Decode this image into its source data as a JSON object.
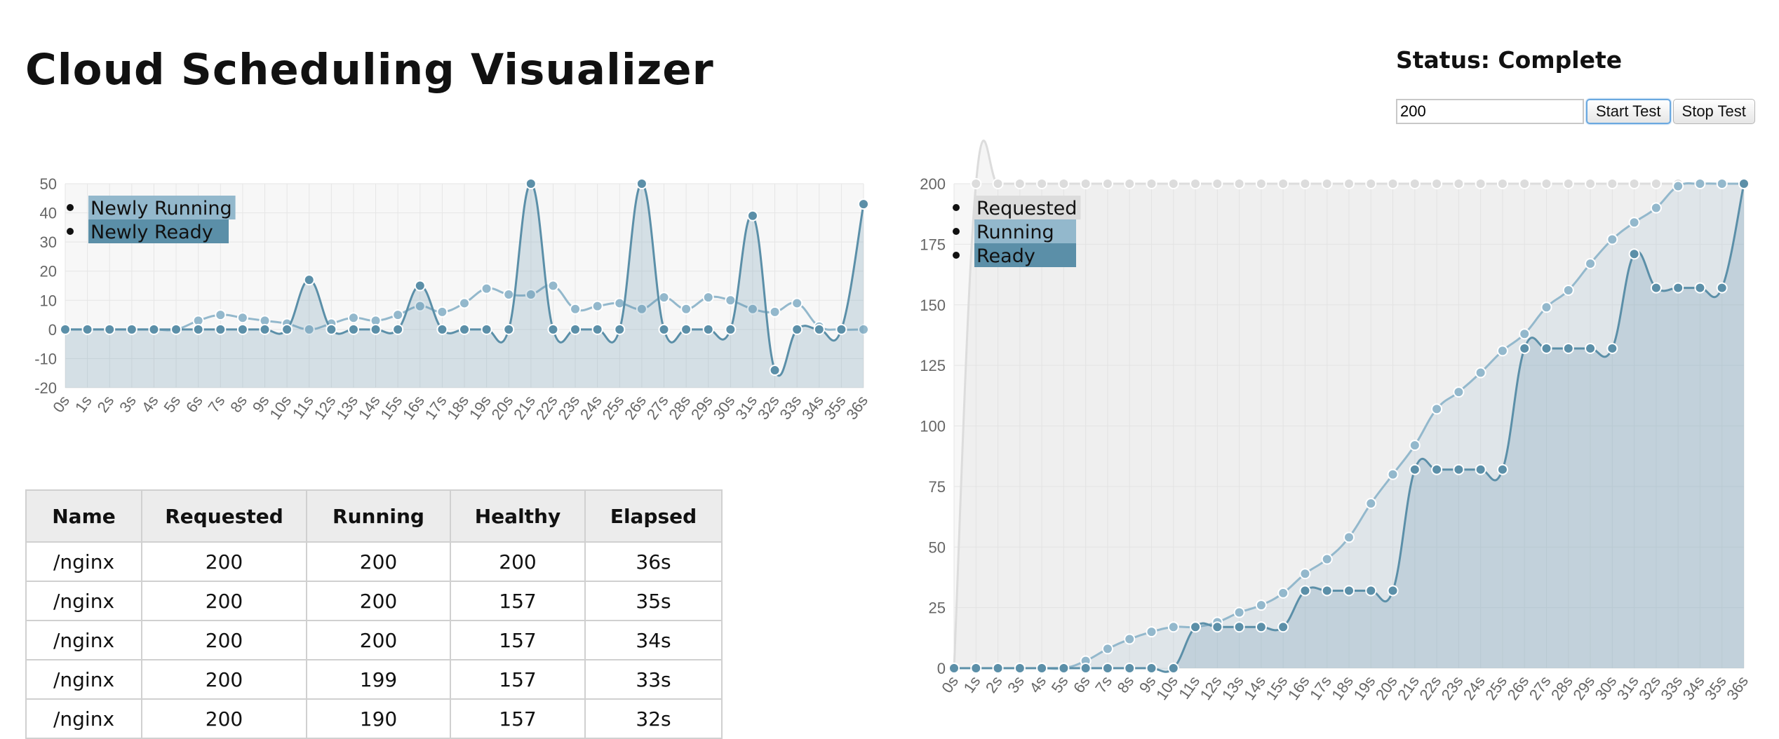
{
  "header": {
    "title": "Cloud Scheduling Visualizer",
    "status": "Status: Complete"
  },
  "controls": {
    "count_value": "200",
    "start_label": "Start Test",
    "stop_label": "Stop Test"
  },
  "colors": {
    "requested": "#dcdcdc",
    "running": "#93b8cc",
    "ready": "#5b8fa8"
  },
  "chart_data": [
    {
      "type": "line",
      "name": "delta-chart",
      "categories": [
        "0s",
        "1s",
        "2s",
        "3s",
        "4s",
        "5s",
        "6s",
        "7s",
        "8s",
        "9s",
        "10s",
        "11s",
        "12s",
        "13s",
        "14s",
        "15s",
        "16s",
        "17s",
        "18s",
        "19s",
        "20s",
        "21s",
        "22s",
        "23s",
        "24s",
        "25s",
        "26s",
        "27s",
        "28s",
        "29s",
        "30s",
        "31s",
        "32s",
        "33s",
        "34s",
        "35s",
        "36s"
      ],
      "ylim": [
        -20,
        50
      ],
      "yticks": [
        -20,
        -10,
        0,
        10,
        20,
        30,
        40,
        50
      ],
      "grid": true,
      "legend_position": "top-left",
      "series": [
        {
          "name": "Newly Running",
          "values": [
            0,
            0,
            0,
            0,
            0,
            0,
            3,
            5,
            4,
            3,
            2,
            0,
            2,
            4,
            3,
            5,
            8,
            6,
            9,
            14,
            12,
            12,
            15,
            7,
            8,
            9,
            7,
            11,
            7,
            11,
            10,
            7,
            6,
            9,
            1,
            0,
            0
          ]
        },
        {
          "name": "Newly Ready",
          "values": [
            0,
            0,
            0,
            0,
            0,
            0,
            0,
            0,
            0,
            0,
            0,
            17,
            0,
            0,
            0,
            0,
            15,
            0,
            0,
            0,
            0,
            50,
            0,
            0,
            0,
            0,
            50,
            0,
            0,
            0,
            0,
            39,
            -14,
            0,
            0,
            0,
            43
          ]
        }
      ]
    },
    {
      "type": "area",
      "name": "cumulative-chart",
      "categories": [
        "0s",
        "1s",
        "2s",
        "3s",
        "4s",
        "5s",
        "6s",
        "7s",
        "8s",
        "9s",
        "10s",
        "11s",
        "12s",
        "13s",
        "14s",
        "15s",
        "16s",
        "17s",
        "18s",
        "19s",
        "20s",
        "21s",
        "22s",
        "23s",
        "24s",
        "25s",
        "26s",
        "27s",
        "28s",
        "29s",
        "30s",
        "31s",
        "32s",
        "33s",
        "34s",
        "35s",
        "36s"
      ],
      "ylim": [
        0,
        200
      ],
      "yticks": [
        0,
        25,
        50,
        75,
        100,
        125,
        150,
        175,
        200
      ],
      "grid": true,
      "legend_position": "top-left",
      "series": [
        {
          "name": "Requested",
          "values": [
            0,
            200,
            200,
            200,
            200,
            200,
            200,
            200,
            200,
            200,
            200,
            200,
            200,
            200,
            200,
            200,
            200,
            200,
            200,
            200,
            200,
            200,
            200,
            200,
            200,
            200,
            200,
            200,
            200,
            200,
            200,
            200,
            200,
            200,
            200,
            200,
            200
          ]
        },
        {
          "name": "Running",
          "values": [
            0,
            0,
            0,
            0,
            0,
            0,
            3,
            8,
            12,
            15,
            17,
            17,
            19,
            23,
            26,
            31,
            39,
            45,
            54,
            68,
            80,
            92,
            107,
            114,
            122,
            131,
            138,
            149,
            156,
            167,
            177,
            184,
            190,
            199,
            200,
            200,
            200
          ]
        },
        {
          "name": "Ready",
          "values": [
            0,
            0,
            0,
            0,
            0,
            0,
            0,
            0,
            0,
            0,
            0,
            17,
            17,
            17,
            17,
            17,
            32,
            32,
            32,
            32,
            32,
            82,
            82,
            82,
            82,
            82,
            132,
            132,
            132,
            132,
            132,
            171,
            157,
            157,
            157,
            157,
            200
          ]
        }
      ]
    }
  ],
  "table": {
    "headers": [
      "Name",
      "Requested",
      "Running",
      "Healthy",
      "Elapsed"
    ],
    "rows": [
      [
        "/nginx",
        "200",
        "200",
        "200",
        "36s"
      ],
      [
        "/nginx",
        "200",
        "200",
        "157",
        "35s"
      ],
      [
        "/nginx",
        "200",
        "200",
        "157",
        "34s"
      ],
      [
        "/nginx",
        "200",
        "199",
        "157",
        "33s"
      ],
      [
        "/nginx",
        "200",
        "190",
        "157",
        "32s"
      ]
    ]
  }
}
